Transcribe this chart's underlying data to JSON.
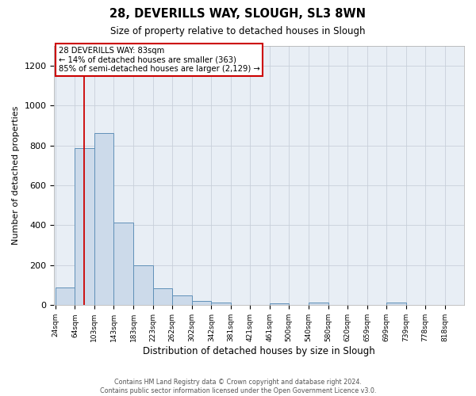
{
  "title": "28, DEVERILLS WAY, SLOUGH, SL3 8WN",
  "subtitle": "Size of property relative to detached houses in Slough",
  "xlabel": "Distribution of detached houses by size in Slough",
  "ylabel": "Number of detached properties",
  "footer_line1": "Contains HM Land Registry data © Crown copyright and database right 2024.",
  "footer_line2": "Contains public sector information licensed under the Open Government Licence v3.0.",
  "bar_color": "#ccdaea",
  "bar_edge_color": "#6090b8",
  "red_line_x": 83,
  "annotation_line1": "28 DEVERILLS WAY: 83sqm",
  "annotation_line2": "← 14% of detached houses are smaller (363)",
  "annotation_line3": "85% of semi-detached houses are larger (2,129) →",
  "annotation_box_color": "#ffffff",
  "annotation_box_edge": "#cc0000",
  "bins": [
    24,
    64,
    103,
    143,
    183,
    223,
    262,
    302,
    342,
    381,
    421,
    461,
    500,
    540,
    580,
    620,
    659,
    699,
    739,
    778,
    818
  ],
  "counts": [
    90,
    785,
    860,
    415,
    200,
    85,
    50,
    23,
    15,
    0,
    0,
    10,
    0,
    12,
    0,
    0,
    0,
    12,
    0,
    0
  ],
  "ylim": [
    0,
    1300
  ],
  "yticks": [
    0,
    200,
    400,
    600,
    800,
    1000,
    1200
  ],
  "grid_color": "#c8d0da",
  "background_color": "#e8eef5",
  "fig_bg": "#ffffff"
}
